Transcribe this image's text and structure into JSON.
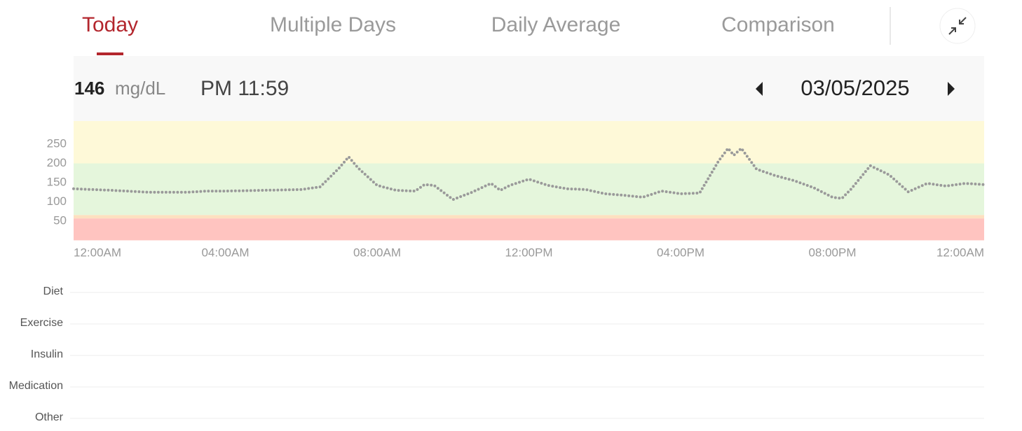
{
  "tabs": [
    "Today",
    "Multiple Days",
    "Daily Average",
    "Comparison"
  ],
  "active_tab": 0,
  "reading": {
    "value": 146,
    "unit": "mg/dL",
    "time": "PM 11:59"
  },
  "date": "03/05/2025",
  "chart_data": {
    "type": "line",
    "x": [
      0,
      1,
      2,
      3,
      3.5,
      4,
      5,
      6,
      6.5,
      7,
      7.25,
      7.5,
      8,
      8.5,
      9,
      9.25,
      9.5,
      10,
      10.5,
      11,
      11.25,
      11.5,
      12,
      12.5,
      13,
      13.5,
      14,
      14.5,
      15,
      15.5,
      16,
      16.5,
      17,
      17.25,
      17.4,
      17.6,
      18,
      18.5,
      19,
      19.5,
      20,
      20.25,
      20.5,
      21,
      21.5,
      22,
      22.5,
      23,
      23.5,
      24
    ],
    "values": [
      134,
      130,
      125,
      125,
      128,
      128,
      130,
      132,
      139,
      188,
      217,
      188,
      143,
      130,
      128,
      145,
      143,
      106,
      125,
      148,
      130,
      143,
      159,
      143,
      134,
      132,
      121,
      117,
      112,
      128,
      121,
      123,
      206,
      239,
      221,
      239,
      185,
      168,
      155,
      137,
      112,
      109,
      134,
      194,
      170,
      126,
      148,
      141,
      148,
      145
    ],
    "color": "#9a9a9a",
    "xlim": [
      0,
      24
    ],
    "xticks": [
      {
        "value": 0,
        "label": "12:00AM"
      },
      {
        "value": 4,
        "label": "04:00AM"
      },
      {
        "value": 8,
        "label": "08:00AM"
      },
      {
        "value": 12,
        "label": "12:00PM"
      },
      {
        "value": 16,
        "label": "04:00PM"
      },
      {
        "value": 20,
        "label": "08:00PM"
      },
      {
        "value": 24,
        "label": "12:00AM"
      }
    ],
    "ylim": [
      0,
      310
    ],
    "yticks": [
      50,
      100,
      150,
      200,
      250
    ],
    "bands": [
      {
        "from": 0,
        "to": 57,
        "color": "#ffc4c0"
      },
      {
        "from": 57,
        "to": 66,
        "color": "#fde0c0"
      },
      {
        "from": 66,
        "to": 200,
        "color": "#e5f6dc"
      },
      {
        "from": 200,
        "to": 310,
        "color": "#fef9d8"
      }
    ]
  },
  "event_rows": [
    "Diet",
    "Exercise",
    "Insulin",
    "Medication",
    "Other"
  ]
}
